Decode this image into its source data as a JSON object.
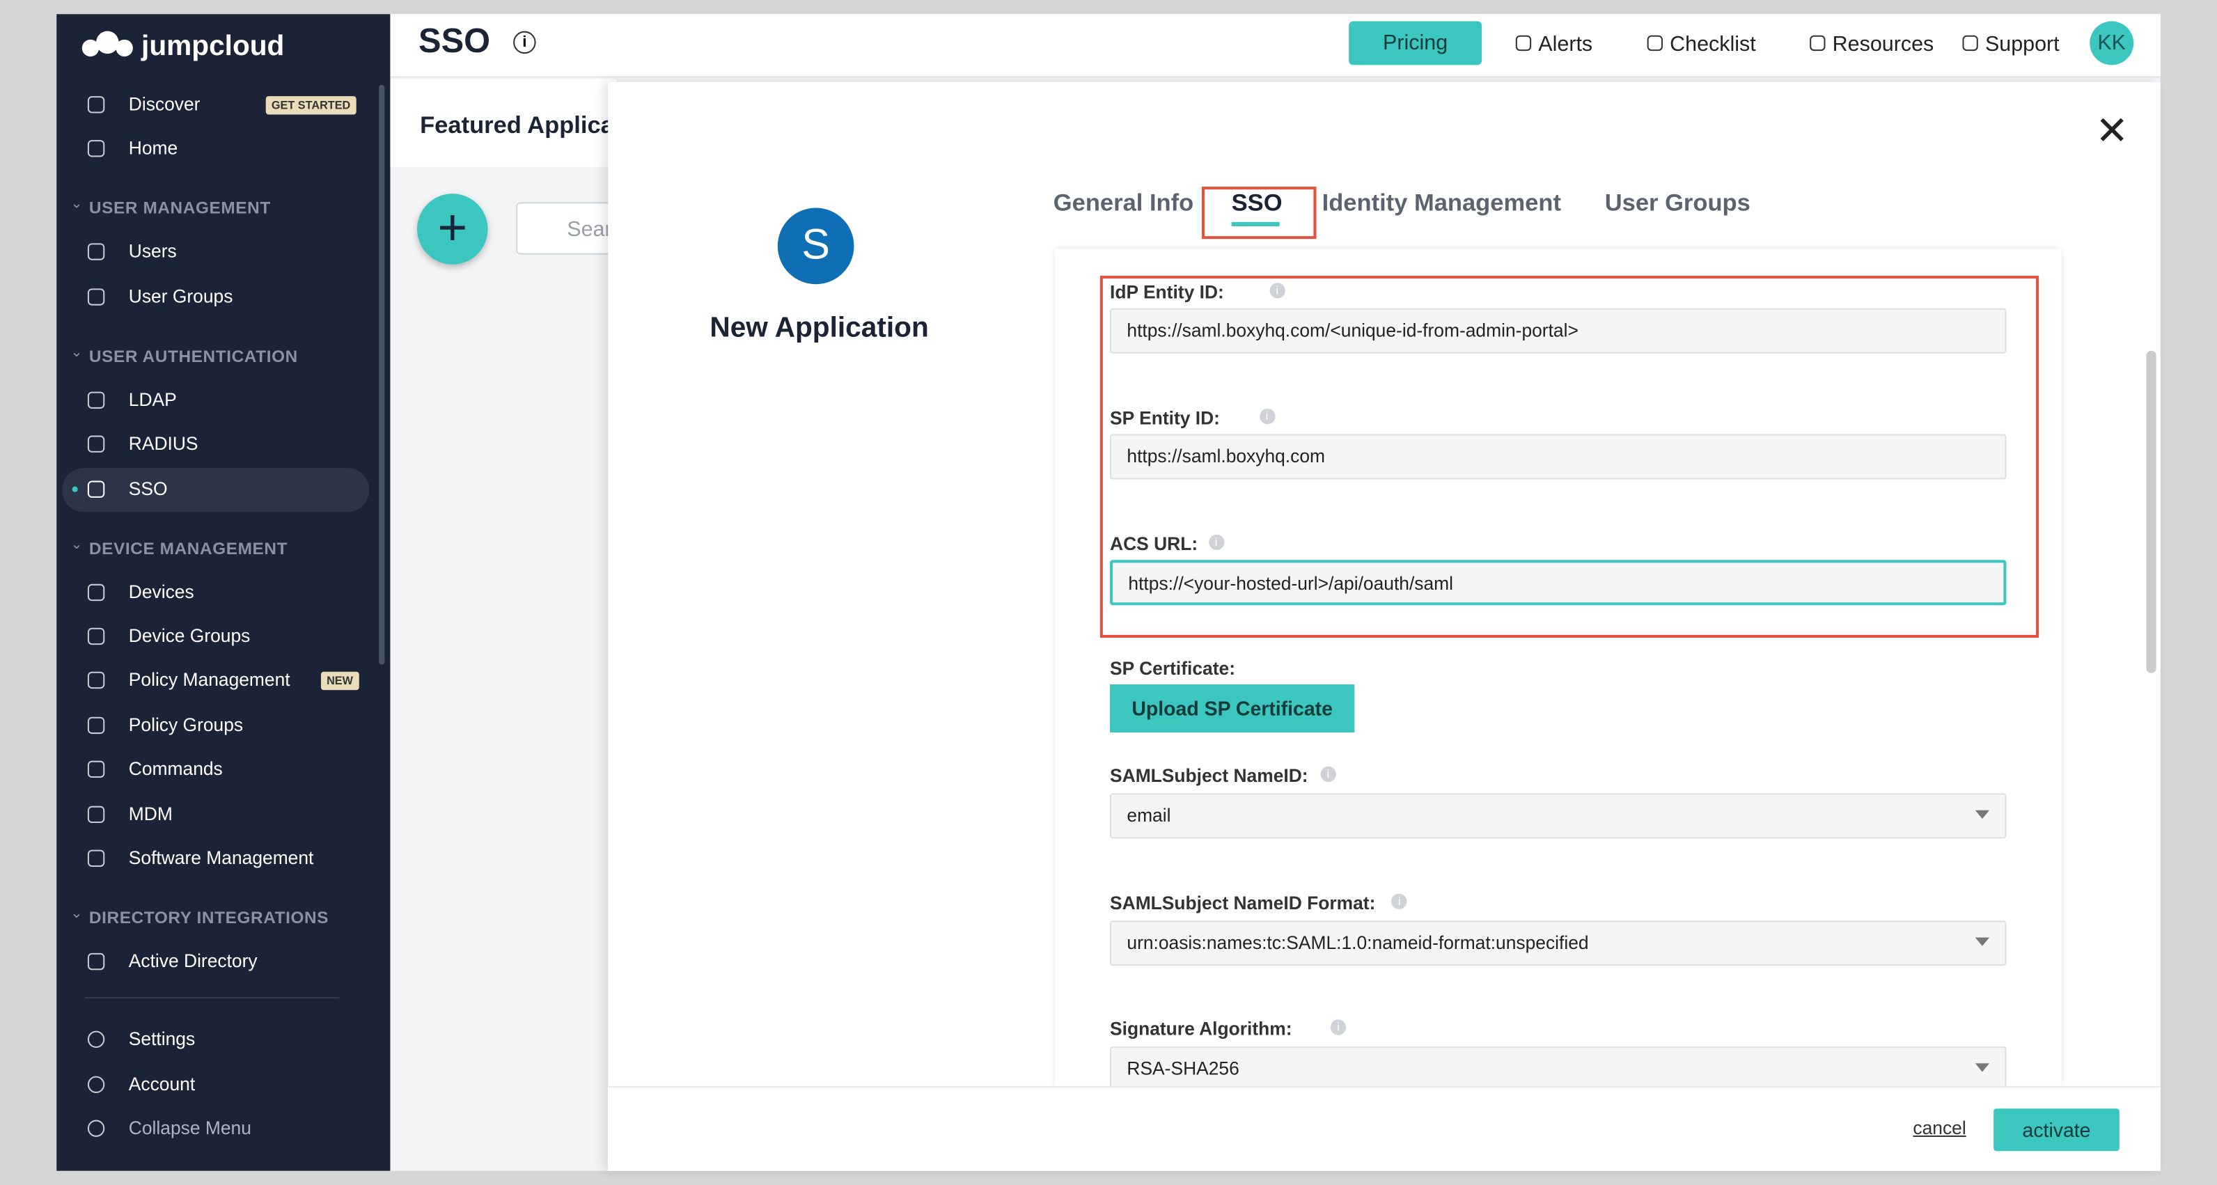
{
  "brand": "jumpcloud",
  "header": {
    "title": "SSO",
    "pricing": "Pricing",
    "links": [
      "Alerts",
      "Checklist",
      "Resources",
      "Support"
    ],
    "avatar": "KK"
  },
  "sidebar": {
    "top": [
      {
        "label": "Discover",
        "badge": "GET STARTED"
      },
      {
        "label": "Home"
      }
    ],
    "sections": [
      {
        "title": "USER MANAGEMENT",
        "items": [
          {
            "label": "Users"
          },
          {
            "label": "User Groups"
          }
        ]
      },
      {
        "title": "USER AUTHENTICATION",
        "items": [
          {
            "label": "LDAP"
          },
          {
            "label": "RADIUS"
          },
          {
            "label": "SSO",
            "active": true
          }
        ]
      },
      {
        "title": "DEVICE MANAGEMENT",
        "items": [
          {
            "label": "Devices"
          },
          {
            "label": "Device Groups"
          },
          {
            "label": "Policy Management",
            "badge": "NEW"
          },
          {
            "label": "Policy Groups"
          },
          {
            "label": "Commands"
          },
          {
            "label": "MDM"
          },
          {
            "label": "Software Management"
          }
        ]
      },
      {
        "title": "DIRECTORY INTEGRATIONS",
        "items": [
          {
            "label": "Active Directory"
          }
        ]
      }
    ],
    "bottom": [
      "Settings",
      "Account",
      "Collapse Menu"
    ]
  },
  "page": {
    "heading": "Featured Applica",
    "search": "Sear"
  },
  "modal": {
    "app_initial": "S",
    "app_name": "New Application",
    "tabs": [
      "General Info",
      "SSO",
      "Identity Management",
      "User Groups"
    ],
    "fields": [
      {
        "label": "IdP Entity ID:",
        "value": "https://saml.boxyhq.com/<unique-id-from-admin-portal>"
      },
      {
        "label": "SP Entity ID:",
        "value": "https://saml.boxyhq.com"
      },
      {
        "label": "ACS URL:",
        "value": "https://<your-hosted-url>/api/oauth/saml"
      }
    ],
    "cert_label": "SP Certificate:",
    "cert_button": "Upload SP Certificate",
    "selects": [
      {
        "label": "SAMLSubject NameID:",
        "value": "email"
      },
      {
        "label": "SAMLSubject NameID Format:",
        "value": "urn:oasis:names:tc:SAML:1.0:nameid-format:unspecified"
      },
      {
        "label": "Signature Algorithm:",
        "value": "RSA-SHA256"
      }
    ],
    "cancel": "cancel",
    "activate": "activate"
  }
}
